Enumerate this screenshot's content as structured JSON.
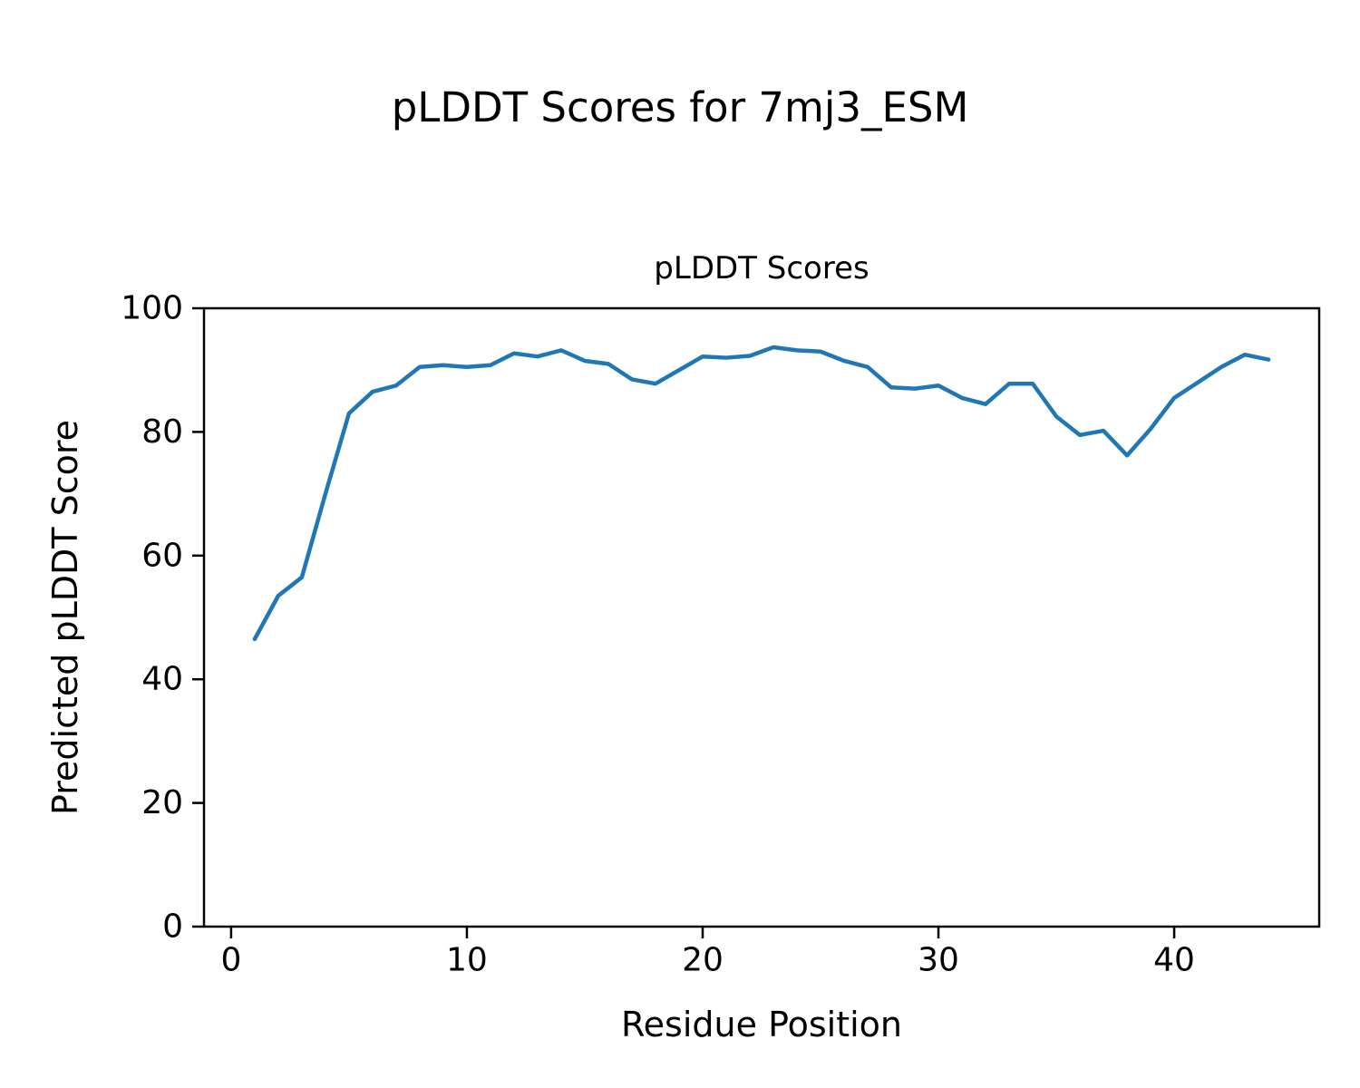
{
  "figure": {
    "suptitle": "pLDDT Scores for 7mj3_ESM",
    "background_color": "#ffffff",
    "text_color": "#000000"
  },
  "chart_data": {
    "type": "line",
    "title": "pLDDT Scores",
    "xlabel": "Residue Position",
    "ylabel": "Predicted pLDDT Score",
    "xlim": [
      -1.15,
      46.15
    ],
    "ylim": [
      0,
      100
    ],
    "xticks": [
      0,
      10,
      20,
      30,
      40
    ],
    "yticks": [
      0,
      20,
      40,
      60,
      80,
      100
    ],
    "grid": false,
    "legend": "none",
    "line_color": "#1f77b4",
    "line_width": 4.5,
    "x": [
      1,
      2,
      3,
      4,
      5,
      6,
      7,
      8,
      9,
      10,
      11,
      12,
      13,
      14,
      15,
      16,
      17,
      18,
      19,
      20,
      21,
      22,
      23,
      24,
      25,
      26,
      27,
      28,
      29,
      30,
      31,
      32,
      33,
      34,
      35,
      36,
      37,
      38,
      39,
      40,
      41,
      42,
      43,
      44
    ],
    "y": [
      46.5,
      53.5,
      56.5,
      70.0,
      83.0,
      86.5,
      87.5,
      90.5,
      90.8,
      90.5,
      90.8,
      92.7,
      92.2,
      93.2,
      91.5,
      91.0,
      88.5,
      87.8,
      90.0,
      92.2,
      92.0,
      92.3,
      93.7,
      93.2,
      93.0,
      91.5,
      90.5,
      87.2,
      87.0,
      87.5,
      85.5,
      84.5,
      87.8,
      87.8,
      82.5,
      79.5,
      80.2,
      76.2,
      80.5,
      85.5,
      88.0,
      90.5,
      92.5,
      91.7
    ]
  }
}
